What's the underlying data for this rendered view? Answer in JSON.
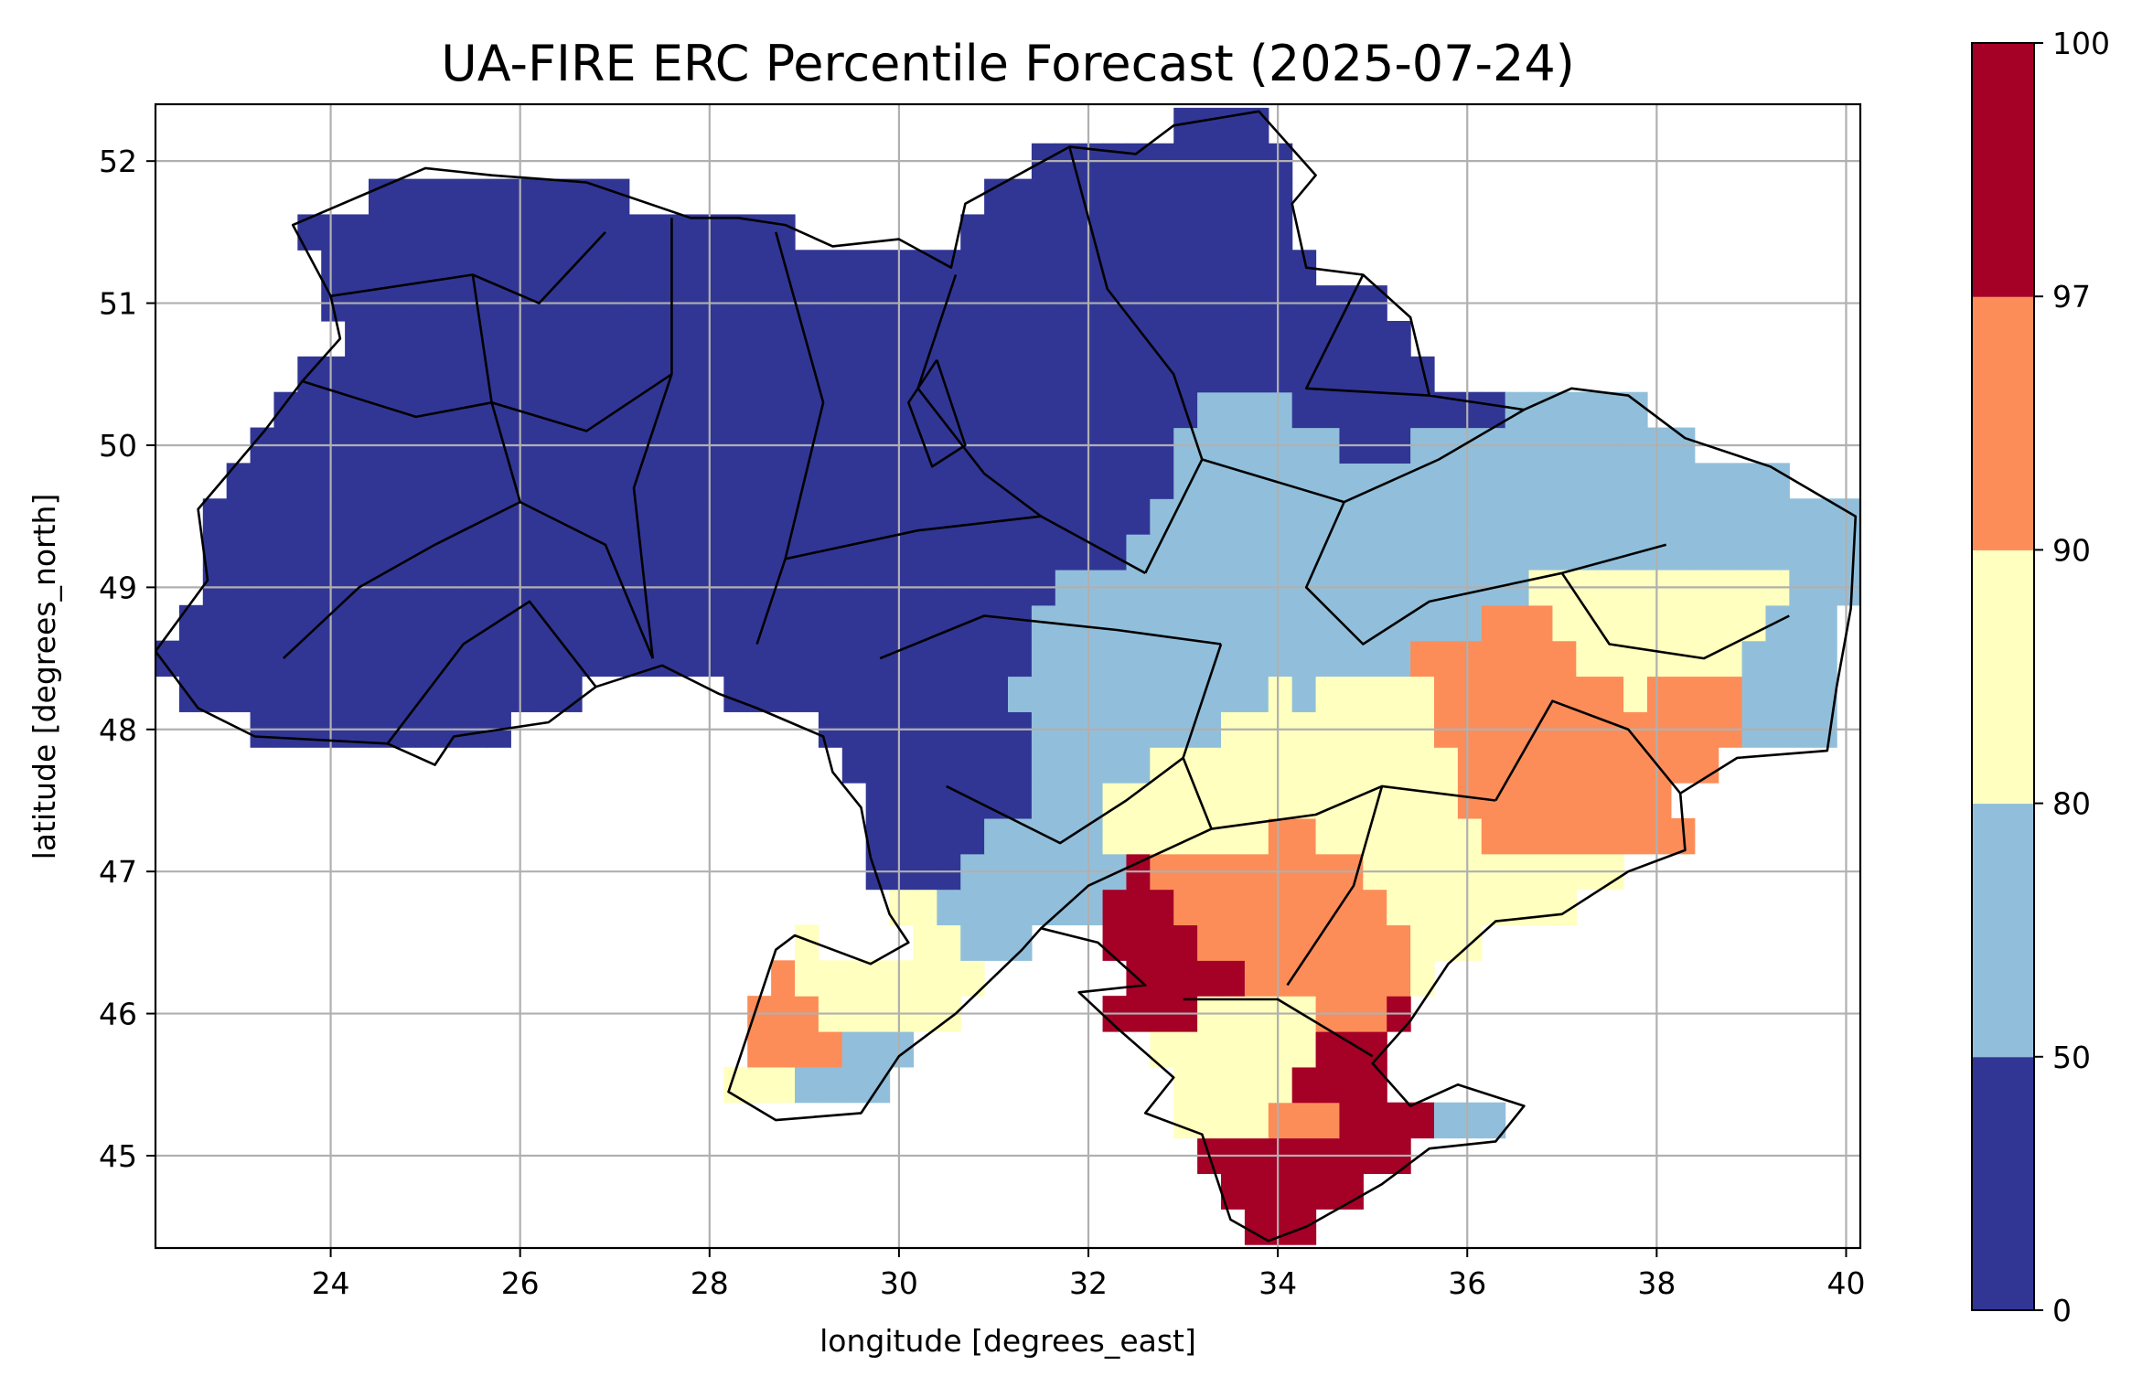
{
  "chart_data": {
    "type": "heatmap",
    "title": "UA-FIRE ERC Percentile Forecast (2025-07-24)",
    "xlabel": "longitude [degrees_east]",
    "ylabel": "latitude [degrees_north]",
    "xlim": [
      22.15,
      40.15
    ],
    "ylim": [
      44.35,
      52.4
    ],
    "xticks": [
      24,
      26,
      28,
      30,
      32,
      34,
      36,
      38,
      40
    ],
    "yticks": [
      45,
      46,
      47,
      48,
      49,
      50,
      51,
      52
    ],
    "grid": true,
    "colorbar": {
      "position": "right",
      "boundaries": [
        0,
        50,
        80,
        90,
        97,
        100
      ],
      "tick_labels": [
        "0",
        "50",
        "80",
        "90",
        "97",
        "100"
      ],
      "colors": [
        "#313695",
        "#91bfdb",
        "#ffffbf",
        "#fc8d59",
        "#a50026"
      ]
    },
    "classes": [
      {
        "range": "0-50",
        "color": "#313695",
        "lon_lat": [
          [
            25,
            51.5
          ],
          [
            28,
            50.5
          ],
          [
            31,
            50
          ],
          [
            33,
            51.5
          ],
          [
            24,
            49
          ],
          [
            27,
            49
          ],
          [
            30,
            48.5
          ],
          [
            30.5,
            47.5
          ],
          [
            35.5,
            50.5
          ]
        ]
      },
      {
        "range": "50-80",
        "color": "#91bfdb",
        "lon_lat": [
          [
            34.5,
            49.3
          ],
          [
            36,
            49.7
          ],
          [
            38,
            49.5
          ],
          [
            32.5,
            48
          ],
          [
            31.5,
            47
          ],
          [
            29.5,
            45.3
          ],
          [
            39.5,
            48
          ],
          [
            36.7,
            45.3
          ]
        ]
      },
      {
        "range": "80-90",
        "color": "#ffffbf",
        "lon_lat": [
          [
            33,
            47.5
          ],
          [
            35.5,
            47.5
          ],
          [
            38,
            48.7
          ],
          [
            36,
            46.7
          ],
          [
            29.5,
            46.2
          ],
          [
            28.5,
            45.3
          ],
          [
            33.8,
            45.6
          ]
        ]
      },
      {
        "range": "90-97",
        "color": "#fc8d59",
        "lon_lat": [
          [
            33.2,
            46.8
          ],
          [
            34.5,
            46.5
          ],
          [
            36.3,
            47.7
          ],
          [
            37,
            48
          ],
          [
            38.4,
            47.9
          ],
          [
            28.8,
            45.9
          ],
          [
            34.3,
            45.2
          ]
        ]
      },
      {
        "range": "97-100",
        "color": "#a50026",
        "lon_lat": [
          [
            32.8,
            46.55
          ],
          [
            34.7,
            45.4
          ],
          [
            34.4,
            45.0
          ],
          [
            33.9,
            44.75
          ]
        ]
      }
    ]
  }
}
